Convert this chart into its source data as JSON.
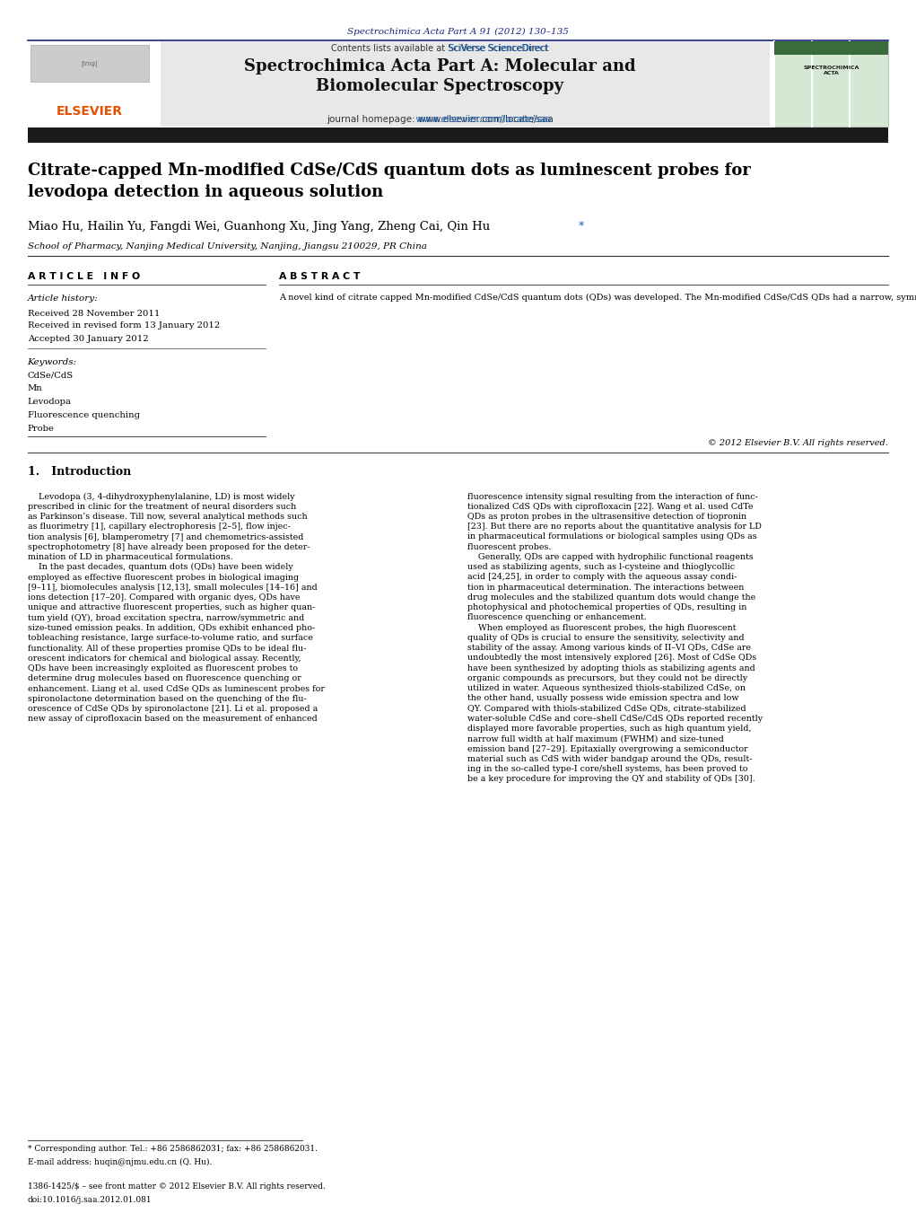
{
  "page_width": 10.21,
  "page_height": 13.51,
  "bg_color": "#ffffff",
  "header_citation": "Spectrochimica Acta Part A 91 (2012) 130–135",
  "header_citation_color": "#1a237e",
  "journal_header_bg": "#e8e8e8",
  "journal_name": "Spectrochimica Acta Part A: Molecular and\nBiomolecular Spectroscopy",
  "contents_line": "Contents lists available at SciVerse ScienceDirect",
  "journal_homepage": "journal homepage: www.elsevier.com/locate/saa",
  "dark_bar_color": "#1a1a1a",
  "article_title": "Citrate-capped Mn-modified CdSe/CdS quantum dots as luminescent probes for\nlevodopa detection in aqueous solution",
  "authors": "Miao Hu, Hailin Yu, Fangdi Wei, Guanhong Xu, Jing Yang, Zheng Cai, Qin Hu",
  "affiliation": "School of Pharmacy, Nanjing Medical University, Nanjing, Jiangsu 210029, PR China",
  "article_info_title": "A R T I C L E   I N F O",
  "abstract_title": "A B S T R A C T",
  "article_history_label": "Article history:",
  "received": "Received 28 November 2011",
  "received_revised": "Received in revised form 13 January 2012",
  "accepted": "Accepted 30 January 2012",
  "keywords_label": "Keywords:",
  "keywords": [
    "CdSe/CdS",
    "Mn",
    "Levodopa",
    "Fluorescence quenching",
    "Probe"
  ],
  "abstract_text": "A novel kind of citrate capped Mn-modified CdSe/CdS quantum dots (QDs) was developed. The Mn-modified CdSe/CdS QDs had a narrow, symmetric emission and strong fluorescence with quantum yield over 41%. The interaction between the QDs and levodopa was investigated. The results showed that levodopa selectively quenched the fluorescence intensity of the QDs. Based on the fluorescence quenching of the synthesized QDs by levodopa, a simple, rapid and specific quantitative method for levodopa was proposed. The factors affecting the fluorescence detection for levodopa were studied. Under the optimum conditions, the quenched intensity of the fluorescence versus levodopa concentration from 1 to 100 μM gave a linear response with an excellent correlation coefficient of 0.9996, and the limit of detection (3σ/K) was 2 × 10⁻⁷ M. The contents of levodopa in pharmaceutical tablets were determined by the proposed method and the results agreed with the claimed values.",
  "copyright": "© 2012 Elsevier B.V. All rights reserved.",
  "intro_heading": "1.   Introduction",
  "intro_col1": "    Levodopa (3, 4-dihydroxyphenylalanine, LD) is most widely\nprescribed in clinic for the treatment of neural disorders such\nas Parkinson’s disease. Till now, several analytical methods such\nas fluorimetry [1], capillary electrophoresis [2–5], flow injec-\ntion analysis [6], blamperometry [7] and chemometrics-assisted\nspectrophotometry [8] have already been proposed for the deter-\nmination of LD in pharmaceutical formulations.\n    In the past decades, quantum dots (QDs) have been widely\nemployed as effective fluorescent probes in biological imaging\n[9–11], biomolecules analysis [12,13], small molecules [14–16] and\nions detection [17–20]. Compared with organic dyes, QDs have\nunique and attractive fluorescent properties, such as higher quan-\ntum yield (QY), broad excitation spectra, narrow/symmetric and\nsize-tuned emission peaks. In addition, QDs exhibit enhanced pho-\ntobleaching resistance, large surface-to-volume ratio, and surface\nfunctionality. All of these properties promise QDs to be ideal flu-\norescent indicators for chemical and biological assay. Recently,\nQDs have been increasingly exploited as fluorescent probes to\ndetermine drug molecules based on fluorescence quenching or\nenhancement. Liang et al. used CdSe QDs as luminescent probes for\nspironolactone determination based on the quenching of the flu-\norescence of CdSe QDs by spironolactone [21]. Li et al. proposed a\nnew assay of ciprofloxacin based on the measurement of enhanced",
  "intro_col2": "fluorescence intensity signal resulting from the interaction of func-\ntionalized CdS QDs with ciprofloxacin [22]. Wang et al. used CdTe\nQDs as proton probes in the ultrasensitive detection of tiopronin\n[23]. But there are no reports about the quantitative analysis for LD\nin pharmaceutical formulations or biological samples using QDs as\nfluorescent probes.\n    Generally, QDs are capped with hydrophilic functional reagents\nused as stabilizing agents, such as l-cysteine and thioglycollic\nacid [24,25], in order to comply with the aqueous assay condi-\ntion in pharmaceutical determination. The interactions between\ndrug molecules and the stabilized quantum dots would change the\nphotophysical and photochemical properties of QDs, resulting in\nfluorescence quenching or enhancement.\n    When employed as fluorescent probes, the high fluorescent\nquality of QDs is crucial to ensure the sensitivity, selectivity and\nstability of the assay. Among various kinds of II–VI QDs, CdSe are\nundoubtedly the most intensively explored [26]. Most of CdSe QDs\nhave been synthesized by adopting thiols as stabilizing agents and\norganic compounds as precursors, but they could not be directly\nutilized in water. Aqueous synthesized thiols-stabilized CdSe, on\nthe other hand, usually possess wide emission spectra and low\nQY. Compared with thiols-stabilized CdSe QDs, citrate-stabilized\nwater-soluble CdSe and core–shell CdSe/CdS QDs reported recently\ndisplayed more favorable properties, such as high quantum yield,\nnarrow full width at half maximum (FWHM) and size-tuned\nemission band [27–29]. Epitaxially overgrowing a semiconductor\nmaterial such as CdS with wider bandgap around the QDs, result-\ning in the so-called type-I core/shell systems, has been proved to\nbe a key procedure for improving the QY and stability of QDs [30].",
  "footnote_star": "* Corresponding author. Tel.: +86 2586862031; fax: +86 2586862031.",
  "footnote_email": "E-mail address: huqin@njmu.edu.cn (Q. Hu).",
  "issn_line": "1386-1425/$ – see front matter © 2012 Elsevier B.V. All rights reserved.",
  "doi_line": "doi:10.1016/j.saa.2012.01.081"
}
